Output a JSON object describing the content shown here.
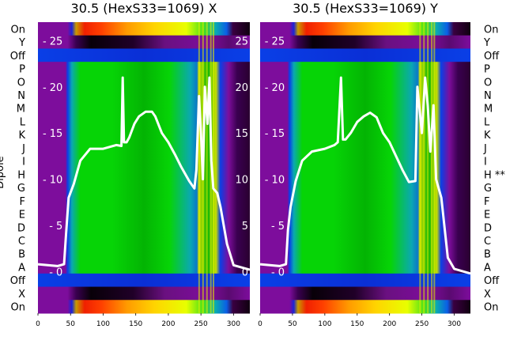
{
  "panels": [
    {
      "title": "30.5 (HexS33=1069) X"
    },
    {
      "title": "30.5 (HexS33=1069) Y"
    }
  ],
  "y_axis_label": "Dipole",
  "left_row_labels": [
    "On",
    "Y",
    "Off",
    "P",
    "O",
    "N",
    "M",
    "L",
    "K",
    "J",
    "I",
    "H",
    "G",
    "F",
    "E",
    "D",
    "C",
    "B",
    "A",
    "Off",
    "X",
    "On"
  ],
  "right_row_labels": [
    "On",
    "Y",
    "Off",
    "P",
    "O",
    "N",
    "M",
    "L",
    "K",
    "J",
    "I",
    "H **",
    "G",
    "F",
    "E",
    "D",
    "C",
    "B",
    "A",
    "Off",
    "X",
    "On"
  ],
  "chart_data": {
    "type": "heatmap",
    "xlim": [
      0,
      325
    ],
    "x_ticks": [
      0,
      50,
      100,
      150,
      200,
      250,
      300
    ],
    "overlay_ylim": [
      -4.5,
      27
    ],
    "overlay_ticks": [
      0,
      5,
      10,
      15,
      20,
      25
    ],
    "series": [
      {
        "name": "panel-x-trace",
        "points": [
          [
            0,
            0.8
          ],
          [
            30,
            0.6
          ],
          [
            40,
            0.8
          ],
          [
            43,
            4
          ],
          [
            47,
            8
          ],
          [
            55,
            9.5
          ],
          [
            65,
            12
          ],
          [
            80,
            13.3
          ],
          [
            100,
            13.3
          ],
          [
            120,
            13.7
          ],
          [
            128,
            13.6
          ],
          [
            130,
            21
          ],
          [
            132,
            14
          ],
          [
            136,
            14
          ],
          [
            140,
            14.5
          ],
          [
            148,
            16
          ],
          [
            155,
            16.8
          ],
          [
            165,
            17.3
          ],
          [
            175,
            17.3
          ],
          [
            180,
            16.8
          ],
          [
            190,
            15
          ],
          [
            200,
            14
          ],
          [
            210,
            12.7
          ],
          [
            220,
            11.3
          ],
          [
            232,
            9.8
          ],
          [
            240,
            9
          ],
          [
            243,
            11
          ],
          [
            247,
            19
          ],
          [
            250,
            15
          ],
          [
            253,
            10
          ],
          [
            256,
            20
          ],
          [
            260,
            16
          ],
          [
            263,
            21
          ],
          [
            266,
            12
          ],
          [
            269,
            9
          ],
          [
            275,
            8.5
          ],
          [
            280,
            7
          ],
          [
            290,
            3
          ],
          [
            300,
            0.7
          ],
          [
            325,
            0.2
          ]
        ]
      },
      {
        "name": "panel-y-trace",
        "points": [
          [
            0,
            0.8
          ],
          [
            30,
            0.6
          ],
          [
            40,
            0.8
          ],
          [
            43,
            4.5
          ],
          [
            47,
            7
          ],
          [
            55,
            9.8
          ],
          [
            65,
            12
          ],
          [
            80,
            13
          ],
          [
            100,
            13.3
          ],
          [
            115,
            13.7
          ],
          [
            120,
            14
          ],
          [
            125,
            21
          ],
          [
            128,
            14.3
          ],
          [
            132,
            14.3
          ],
          [
            140,
            15
          ],
          [
            150,
            16.2
          ],
          [
            160,
            16.8
          ],
          [
            170,
            17.2
          ],
          [
            180,
            16.7
          ],
          [
            190,
            15
          ],
          [
            200,
            14
          ],
          [
            210,
            12.5
          ],
          [
            220,
            11
          ],
          [
            230,
            9.7
          ],
          [
            240,
            9.8
          ],
          [
            243,
            20
          ],
          [
            250,
            15
          ],
          [
            255,
            21
          ],
          [
            259,
            18
          ],
          [
            263,
            13
          ],
          [
            268,
            18
          ],
          [
            272,
            10
          ],
          [
            280,
            8
          ],
          [
            290,
            1.5
          ],
          [
            300,
            0.3
          ],
          [
            325,
            -0.2
          ]
        ]
      }
    ]
  },
  "colors": {
    "purple": "#7d0d9c",
    "green": "#06d406",
    "cyan": "#0aa8b2",
    "blue": "#0a3fe6",
    "trace": "#ffffff"
  }
}
